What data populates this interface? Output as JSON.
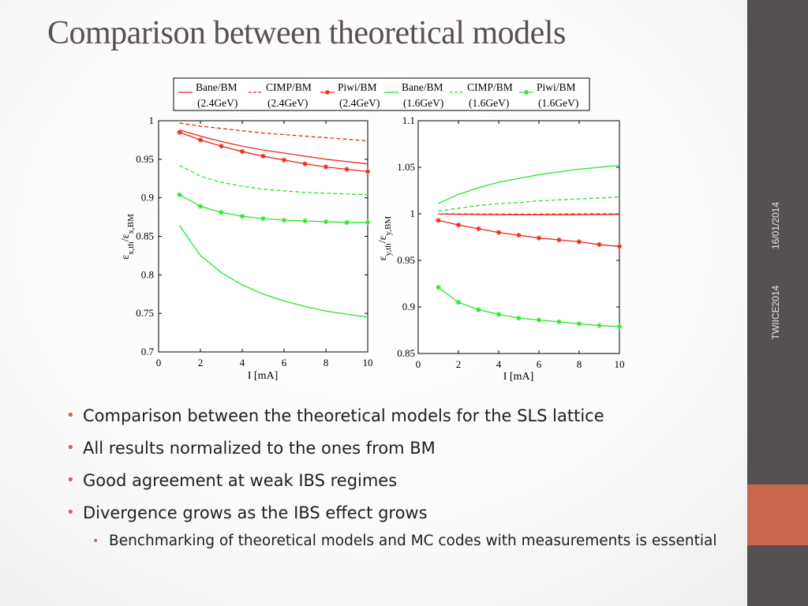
{
  "slide": {
    "title": "Comparison between theoretical models",
    "side_date": "16/01/2014",
    "side_event": "TWIICE2014",
    "bullets": [
      "Comparison between the theoretical models for the SLS lattice",
      "All results normalized to the ones from BM",
      "Good agreement at weak IBS regimes",
      "Divergence grows as the IBS effect grows"
    ],
    "sub_bullets": [
      "Benchmarking of theoretical models and MC codes with measurements is essential"
    ],
    "colors": {
      "sidebar": "#575050",
      "accent": "#c7684c",
      "title": "#5b4f4f",
      "red": "#e8281e",
      "green": "#28e628"
    }
  },
  "legend": {
    "entries": [
      {
        "name": "Bane/BM",
        "sub": "(2.4GeV)",
        "color": "#e8281e",
        "style": "solid"
      },
      {
        "name": "CIMP/BM",
        "sub": "(2.4GeV)",
        "color": "#e8281e",
        "style": "dashed"
      },
      {
        "name": "Piwi/BM",
        "sub": "(2.4GeV)",
        "color": "#e8281e",
        "style": "star"
      },
      {
        "name": "Bane/BM",
        "sub": "(1.6GeV)",
        "color": "#28e628",
        "style": "solid"
      },
      {
        "name": "CIMP/BM",
        "sub": "(1.6GeV)",
        "color": "#28e628",
        "style": "dashed"
      },
      {
        "name": "Piwi/BM",
        "sub": "(1.6GeV)",
        "color": "#28e628",
        "style": "star"
      }
    ]
  },
  "chart_data": [
    {
      "type": "line",
      "xlabel": "I [mA]",
      "ylabel": "ε x,th/ε x,BM",
      "xlim": [
        0,
        10
      ],
      "ylim": [
        0.7,
        1.0
      ],
      "xticks": [
        "0",
        "2",
        "4",
        "6",
        "8",
        "10"
      ],
      "yticks": [
        "0.7",
        "0.75",
        "0.8",
        "0.85",
        "0.9",
        "0.95",
        "1"
      ],
      "x": [
        1,
        2,
        3,
        4,
        5,
        6,
        7,
        8,
        9,
        10
      ],
      "series": [
        {
          "name": "Bane/BM (2.4GeV)",
          "color": "#e8281e",
          "style": "solid",
          "values": [
            0.988,
            0.98,
            0.973,
            0.967,
            0.962,
            0.958,
            0.954,
            0.95,
            0.947,
            0.944
          ]
        },
        {
          "name": "CIMP/BM (2.4GeV)",
          "color": "#e8281e",
          "style": "dashed",
          "values": [
            0.997,
            0.993,
            0.99,
            0.987,
            0.984,
            0.982,
            0.98,
            0.978,
            0.976,
            0.974
          ]
        },
        {
          "name": "Piwi/BM (2.4GeV)",
          "color": "#e8281e",
          "style": "star",
          "values": [
            0.985,
            0.975,
            0.967,
            0.96,
            0.954,
            0.949,
            0.944,
            0.94,
            0.937,
            0.934
          ]
        },
        {
          "name": "Bane/BM (1.6GeV)",
          "color": "#28e628",
          "style": "solid",
          "values": [
            0.864,
            0.825,
            0.803,
            0.787,
            0.775,
            0.766,
            0.759,
            0.753,
            0.749,
            0.745
          ]
        },
        {
          "name": "CIMP/BM (1.6GeV)",
          "color": "#28e628",
          "style": "dashed",
          "values": [
            0.942,
            0.928,
            0.92,
            0.915,
            0.911,
            0.909,
            0.907,
            0.906,
            0.905,
            0.904
          ]
        },
        {
          "name": "Piwi/BM (1.6GeV)",
          "color": "#28e628",
          "style": "star",
          "values": [
            0.904,
            0.889,
            0.881,
            0.876,
            0.873,
            0.871,
            0.87,
            0.869,
            0.868,
            0.868
          ]
        }
      ]
    },
    {
      "type": "line",
      "xlabel": "I [mA]",
      "ylabel": "ε y,th/ε y,BM",
      "xlim": [
        0,
        10
      ],
      "ylim": [
        0.85,
        1.1
      ],
      "xticks": [
        "0",
        "2",
        "4",
        "6",
        "8",
        "10"
      ],
      "yticks": [
        "0.85",
        "0.9",
        "0.95",
        "1",
        "1.05",
        "1.1"
      ],
      "x": [
        1,
        2,
        3,
        4,
        5,
        6,
        7,
        8,
        9,
        10
      ],
      "series": [
        {
          "name": "Bane/BM (2.4GeV)",
          "color": "#e8281e",
          "style": "solid",
          "values": [
            1.0,
            0.9995,
            0.9993,
            0.9991,
            0.999,
            0.999,
            0.999,
            0.9991,
            0.9992,
            0.9993
          ]
        },
        {
          "name": "CIMP/BM (2.4GeV)",
          "color": "#e8281e",
          "style": "dashed",
          "values": [
            1.0,
            1.0,
            0.9998,
            0.9997,
            0.9997,
            0.9997,
            0.9998,
            0.9999,
            1.0,
            1.0
          ]
        },
        {
          "name": "Piwi/BM (2.4GeV)",
          "color": "#e8281e",
          "style": "star",
          "values": [
            0.993,
            0.988,
            0.984,
            0.98,
            0.977,
            0.974,
            0.972,
            0.97,
            0.967,
            0.965
          ]
        },
        {
          "name": "Bane/BM (1.6GeV)",
          "color": "#28e628",
          "style": "solid",
          "values": [
            1.011,
            1.021,
            1.028,
            1.034,
            1.038,
            1.042,
            1.045,
            1.048,
            1.05,
            1.052
          ]
        },
        {
          "name": "CIMP/BM (1.6GeV)",
          "color": "#28e628",
          "style": "dashed",
          "values": [
            1.003,
            1.006,
            1.009,
            1.011,
            1.012,
            1.014,
            1.015,
            1.016,
            1.017,
            1.018
          ]
        },
        {
          "name": "Piwi/BM (1.6GeV)",
          "color": "#28e628",
          "style": "star",
          "values": [
            0.921,
            0.905,
            0.897,
            0.892,
            0.888,
            0.886,
            0.884,
            0.882,
            0.88,
            0.879
          ]
        }
      ]
    }
  ]
}
